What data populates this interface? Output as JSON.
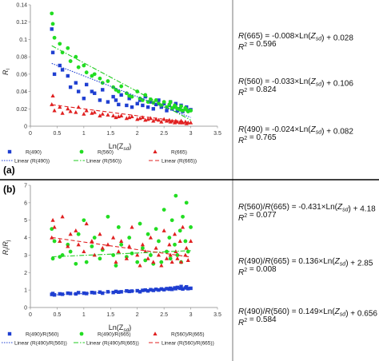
{
  "panels": [
    {
      "label": "(a)",
      "ylabel": "R_l",
      "xlabel": "Ln(Z_sd)",
      "equations": [
        {
          "line1": "R(665) = -0.008×Ln(Z_sd) + 0.028",
          "line2": "R² = 0.596"
        },
        {
          "line1": "R(560) = -0.033×Ln(Z_sd) + 0.106",
          "line2": "R² = 0.824"
        },
        {
          "line1": "R(490) = -0.024×Ln(Z_sd) + 0.082",
          "line2": "R² = 0.765"
        }
      ],
      "legend": {
        "markers": [
          "R(490)",
          "R(560)",
          "R(665)"
        ],
        "lines": [
          "Linear (R(490))",
          "Linear (R(560))",
          "Linear (R(665))"
        ]
      }
    },
    {
      "label": "(b)",
      "ylabel": "R_i/R_j",
      "xlabel": "Ln(Z_sd)",
      "equations": [
        {
          "line1": "R(560)/R(665) = -0.431×Ln(Z_sd) + 4.18",
          "line2": "R² = 0.077"
        },
        {
          "line1": "R(490)/R(665) = 0.136×Ln(Z_sd) + 2.85",
          "line2": "R² = 0.008"
        },
        {
          "line1": "R(490)/R(560) = 0.149×Ln(Z_sd) + 0.656",
          "line2": "R² = 0.584"
        }
      ],
      "legend": {
        "markers": [
          "R(490)/R(560)",
          "R(490)/R(665)",
          "R(560)/R(665)"
        ],
        "lines": [
          "Linear (R(490)/R(560))",
          "Linear (R(490)/R(665))",
          "Linear (R(560)/R(665))"
        ]
      }
    }
  ],
  "chart_data": [
    {
      "type": "scatter",
      "xlim": [
        0,
        3.5
      ],
      "ylim": [
        0,
        0.14
      ],
      "xticks": [
        "0",
        "0.5",
        "1",
        "1.5",
        "2",
        "2.5",
        "3",
        "3.5"
      ],
      "yticks": [
        "0",
        "0.02",
        "0.04",
        "0.06",
        "0.08",
        "0.1",
        "0.12",
        "0.14"
      ],
      "x": [
        0.4,
        0.42,
        0.45,
        0.55,
        0.6,
        0.7,
        0.75,
        0.85,
        0.9,
        1.0,
        1.05,
        1.15,
        1.2,
        1.3,
        1.35,
        1.45,
        1.55,
        1.6,
        1.65,
        1.7,
        1.8,
        1.85,
        1.9,
        2.0,
        2.05,
        2.1,
        2.15,
        2.2,
        2.25,
        2.3,
        2.35,
        2.4,
        2.45,
        2.5,
        2.55,
        2.6,
        2.62,
        2.65,
        2.7,
        2.72,
        2.75,
        2.8,
        2.82,
        2.85,
        2.9,
        2.92,
        2.95,
        3.0
      ],
      "series": [
        {
          "name": "R(490)",
          "color": "#1f3fd1",
          "marker": "square",
          "values": [
            0.112,
            0.085,
            0.06,
            0.07,
            0.065,
            0.058,
            0.045,
            0.05,
            0.04,
            0.032,
            0.048,
            0.04,
            0.038,
            0.03,
            0.042,
            0.028,
            0.034,
            0.03,
            0.025,
            0.036,
            0.024,
            0.032,
            0.022,
            0.026,
            0.03,
            0.024,
            0.034,
            0.022,
            0.028,
            0.02,
            0.025,
            0.03,
            0.022,
            0.026,
            0.018,
            0.024,
            0.028,
            0.02,
            0.022,
            0.026,
            0.018,
            0.02,
            0.024,
            0.017,
            0.02,
            0.022,
            0.018,
            0.019
          ],
          "fit": {
            "slope": -0.024,
            "intercept": 0.082,
            "color": "#1f3fd1",
            "dash": "1.5,1.5"
          }
        },
        {
          "name": "R(560)",
          "color": "#22dd22",
          "marker": "circle",
          "values": [
            0.13,
            0.118,
            0.102,
            0.095,
            0.085,
            0.09,
            0.075,
            0.08,
            0.068,
            0.07,
            0.062,
            0.058,
            0.06,
            0.055,
            0.05,
            0.052,
            0.045,
            0.042,
            0.04,
            0.046,
            0.038,
            0.035,
            0.034,
            0.04,
            0.032,
            0.03,
            0.036,
            0.028,
            0.031,
            0.027,
            0.03,
            0.026,
            0.024,
            0.028,
            0.022,
            0.025,
            0.028,
            0.021,
            0.024,
            0.022,
            0.02,
            0.019,
            0.023,
            0.018,
            0.021,
            0.019,
            0.017,
            0.018
          ],
          "fit": {
            "slope": -0.033,
            "intercept": 0.106,
            "color": "#22cc22",
            "dash": "6,2,1.5,2"
          }
        },
        {
          "name": "R(665)",
          "color": "#e02020",
          "marker": "triangle",
          "values": [
            0.025,
            0.035,
            0.018,
            0.022,
            0.015,
            0.02,
            0.017,
            0.016,
            0.022,
            0.014,
            0.018,
            0.015,
            0.016,
            0.012,
            0.014,
            0.013,
            0.012,
            0.01,
            0.011,
            0.012,
            0.009,
            0.01,
            0.011,
            0.008,
            0.009,
            0.01,
            0.007,
            0.008,
            0.009,
            0.006,
            0.008,
            0.007,
            0.005,
            0.008,
            0.006,
            0.007,
            0.005,
            0.006,
            0.004,
            0.006,
            0.005,
            0.004,
            0.006,
            0.004,
            0.005,
            0.003,
            0.004,
            0.004
          ],
          "fit": {
            "slope": -0.008,
            "intercept": 0.028,
            "color": "#e02020",
            "dash": "5,3"
          }
        }
      ]
    },
    {
      "type": "scatter",
      "xlim": [
        0,
        3.5
      ],
      "ylim": [
        0,
        7
      ],
      "xticks": [
        "0",
        "0.5",
        "1",
        "1.5",
        "2",
        "2.5",
        "3",
        "3.5"
      ],
      "yticks": [
        "0",
        "1",
        "2",
        "3",
        "4",
        "5",
        "6",
        "7"
      ],
      "x": [
        0.4,
        0.42,
        0.45,
        0.55,
        0.6,
        0.7,
        0.75,
        0.85,
        0.9,
        1.0,
        1.05,
        1.15,
        1.2,
        1.3,
        1.35,
        1.45,
        1.55,
        1.6,
        1.65,
        1.7,
        1.8,
        1.85,
        1.9,
        2.0,
        2.05,
        2.1,
        2.15,
        2.2,
        2.25,
        2.3,
        2.35,
        2.4,
        2.45,
        2.5,
        2.55,
        2.6,
        2.62,
        2.65,
        2.7,
        2.72,
        2.75,
        2.8,
        2.82,
        2.85,
        2.9,
        2.92,
        2.95,
        3.0
      ],
      "series": [
        {
          "name": "R(490)/R(560)",
          "color": "#1f3fd1",
          "marker": "square",
          "values": [
            0.75,
            0.8,
            0.72,
            0.78,
            0.76,
            0.82,
            0.8,
            0.78,
            0.85,
            0.82,
            0.8,
            0.86,
            0.84,
            0.88,
            0.82,
            0.9,
            0.86,
            0.92,
            0.88,
            0.9,
            0.95,
            0.92,
            0.94,
            0.96,
            0.9,
            0.98,
            1.0,
            0.95,
            1.02,
            0.98,
            1.04,
            1.0,
            1.06,
            1.02,
            1.08,
            1.05,
            1.1,
            1.04,
            1.12,
            1.08,
            1.15,
            1.1,
            1.2,
            1.06,
            1.12,
            1.18,
            1.08,
            1.1
          ],
          "fit": {
            "slope": 0.149,
            "intercept": 0.656,
            "color": "#1f3fd1",
            "dash": "1.5,1.5"
          }
        },
        {
          "name": "R(490)/R(665)",
          "color": "#22dd22",
          "marker": "circle",
          "values": [
            4.5,
            2.8,
            3.8,
            2.9,
            3.0,
            3.6,
            3.2,
            2.5,
            4.2,
            5.0,
            2.6,
            3.5,
            4.0,
            2.8,
            3.3,
            5.2,
            3.0,
            2.4,
            4.6,
            3.6,
            2.9,
            4.0,
            3.1,
            2.6,
            4.8,
            3.4,
            2.7,
            4.2,
            3.0,
            2.5,
            4.5,
            3.8,
            2.6,
            5.6,
            3.2,
            4.0,
            2.8,
            5.0,
            3.6,
            6.4,
            3.0,
            4.4,
            2.6,
            5.2,
            3.8,
            6.0,
            3.2,
            4.6
          ],
          "fit": {
            "slope": 0.136,
            "intercept": 2.85,
            "color": "#22cc22",
            "dash": "6,2,1.5,2"
          }
        },
        {
          "name": "R(560)/R(665)",
          "color": "#e02020",
          "marker": "triangle",
          "values": [
            4.0,
            5.0,
            4.6,
            3.8,
            5.2,
            3.5,
            4.2,
            4.4,
            3.6,
            3.2,
            4.8,
            3.8,
            3.0,
            4.2,
            3.4,
            3.6,
            4.0,
            2.6,
            3.2,
            3.8,
            2.8,
            3.5,
            4.6,
            3.0,
            2.4,
            3.6,
            3.2,
            2.8,
            4.0,
            2.6,
            3.4,
            3.0,
            2.4,
            4.4,
            2.8,
            3.6,
            3.0,
            2.6,
            4.2,
            3.2,
            2.8,
            3.8,
            2.6,
            4.6,
            3.0,
            3.4,
            2.7,
            3.8
          ],
          "fit": {
            "slope": -0.431,
            "intercept": 4.18,
            "color": "#e02020",
            "dash": "5,3"
          }
        }
      ]
    }
  ]
}
